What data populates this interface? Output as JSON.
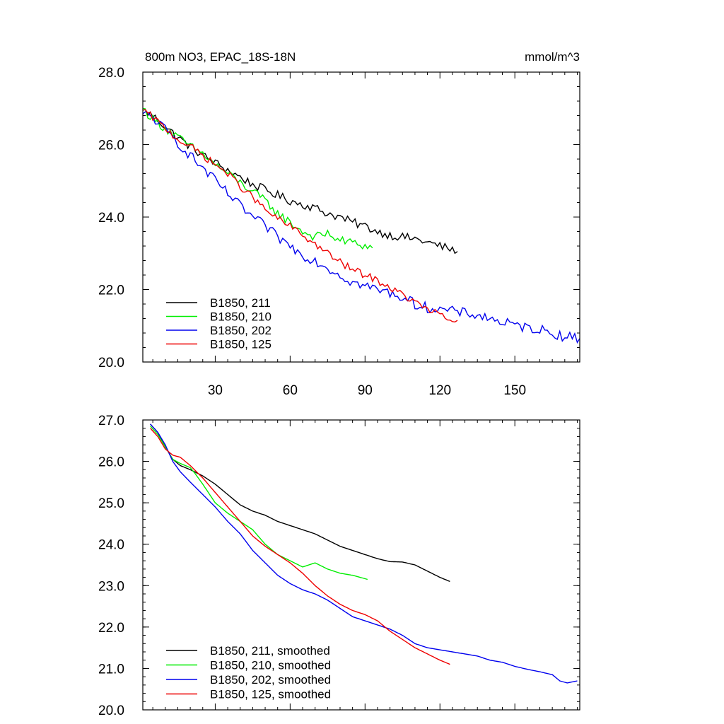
{
  "chart_data": [
    {
      "type": "line",
      "title": "800m NO3, EPAC_18S-18N",
      "units": "mmol/m^3",
      "xlim": [
        1,
        176
      ],
      "ylim": [
        20.0,
        28.0
      ],
      "x_ticks": [
        30,
        60,
        90,
        120,
        150
      ],
      "y_ticks": [
        20.0,
        22.0,
        24.0,
        26.0,
        28.0
      ],
      "x_tick_labels": [
        "30",
        "60",
        "90",
        "120",
        "150"
      ],
      "y_tick_labels": [
        "20.0",
        "22.0",
        "24.0",
        "26.0",
        "28.0"
      ],
      "legend_placement": "bottom-left",
      "series": [
        {
          "name": "B1850, 211",
          "color": "#000000",
          "anchors": [
            [
              1,
              26.95
            ],
            [
              5,
              26.8
            ],
            [
              10,
              26.5
            ],
            [
              15,
              26.2
            ],
            [
              20,
              25.95
            ],
            [
              25,
              25.7
            ],
            [
              30,
              25.5
            ],
            [
              35,
              25.3
            ],
            [
              40,
              25.1
            ],
            [
              45,
              24.9
            ],
            [
              50,
              24.75
            ],
            [
              55,
              24.6
            ],
            [
              60,
              24.45
            ],
            [
              65,
              24.35
            ],
            [
              70,
              24.25
            ],
            [
              75,
              24.1
            ],
            [
              80,
              24.0
            ],
            [
              85,
              23.85
            ],
            [
              90,
              23.75
            ],
            [
              95,
              23.6
            ],
            [
              100,
              23.5
            ],
            [
              105,
              23.45
            ],
            [
              110,
              23.4
            ],
            [
              115,
              23.3
            ],
            [
              120,
              23.2
            ],
            [
              125,
              23.1
            ],
            [
              127,
              23.05
            ]
          ],
          "noise": 0.12
        },
        {
          "name": "B1850, 210",
          "color": "#00ee00",
          "anchors": [
            [
              1,
              27.0
            ],
            [
              5,
              26.7
            ],
            [
              10,
              26.45
            ],
            [
              15,
              26.2
            ],
            [
              20,
              25.95
            ],
            [
              25,
              25.75
            ],
            [
              30,
              25.45
            ],
            [
              35,
              25.2
            ],
            [
              40,
              24.95
            ],
            [
              45,
              24.7
            ],
            [
              50,
              24.45
            ],
            [
              55,
              24.1
            ],
            [
              60,
              23.85
            ],
            [
              65,
              23.6
            ],
            [
              70,
              23.45
            ],
            [
              75,
              23.55
            ],
            [
              80,
              23.35
            ],
            [
              85,
              23.3
            ],
            [
              90,
              23.2
            ],
            [
              93,
              23.15
            ]
          ],
          "noise": 0.12
        },
        {
          "name": "B1850, 202",
          "color": "#0000ee",
          "anchors": [
            [
              1,
              26.85
            ],
            [
              5,
              26.75
            ],
            [
              10,
              26.4
            ],
            [
              15,
              26.05
            ],
            [
              20,
              25.7
            ],
            [
              25,
              25.35
            ],
            [
              30,
              25.0
            ],
            [
              35,
              24.65
            ],
            [
              40,
              24.3
            ],
            [
              45,
              24.0
            ],
            [
              50,
              23.75
            ],
            [
              55,
              23.45
            ],
            [
              60,
              23.2
            ],
            [
              65,
              22.95
            ],
            [
              70,
              22.8
            ],
            [
              75,
              22.6
            ],
            [
              80,
              22.4
            ],
            [
              85,
              22.2
            ],
            [
              90,
              22.1
            ],
            [
              95,
              22.0
            ],
            [
              100,
              21.9
            ],
            [
              105,
              21.8
            ],
            [
              110,
              21.6
            ],
            [
              115,
              21.5
            ],
            [
              120,
              21.45
            ],
            [
              125,
              21.4
            ],
            [
              130,
              21.35
            ],
            [
              135,
              21.3
            ],
            [
              140,
              21.2
            ],
            [
              145,
              21.1
            ],
            [
              150,
              21.0
            ],
            [
              155,
              20.95
            ],
            [
              160,
              20.9
            ],
            [
              165,
              20.8
            ],
            [
              170,
              20.7
            ],
            [
              176,
              20.65
            ]
          ],
          "noise": 0.14
        },
        {
          "name": "B1850, 125",
          "color": "#ee0000",
          "anchors": [
            [
              1,
              26.95
            ],
            [
              5,
              26.75
            ],
            [
              10,
              26.45
            ],
            [
              15,
              26.15
            ],
            [
              20,
              25.95
            ],
            [
              25,
              25.7
            ],
            [
              30,
              25.45
            ],
            [
              35,
              25.2
            ],
            [
              40,
              24.85
            ],
            [
              45,
              24.55
            ],
            [
              50,
              24.2
            ],
            [
              55,
              23.95
            ],
            [
              60,
              23.75
            ],
            [
              65,
              23.5
            ],
            [
              70,
              23.25
            ],
            [
              75,
              23.0
            ],
            [
              80,
              22.75
            ],
            [
              85,
              22.55
            ],
            [
              90,
              22.4
            ],
            [
              95,
              22.25
            ],
            [
              100,
              22.05
            ],
            [
              105,
              21.85
            ],
            [
              110,
              21.65
            ],
            [
              115,
              21.45
            ],
            [
              120,
              21.3
            ],
            [
              125,
              21.1
            ],
            [
              127,
              21.15
            ]
          ],
          "noise": 0.1
        }
      ]
    },
    {
      "type": "line",
      "title": "",
      "xlim": [
        1,
        176
      ],
      "ylim": [
        20.0,
        27.0
      ],
      "x_ticks": [
        30,
        60,
        90,
        120,
        150
      ],
      "y_ticks": [
        20.0,
        21.0,
        22.0,
        23.0,
        24.0,
        25.0,
        26.0,
        27.0
      ],
      "y_tick_labels": [
        "20.0",
        "21.0",
        "22.0",
        "23.0",
        "24.0",
        "25.0",
        "26.0",
        "27.0"
      ],
      "legend_placement": "bottom-left",
      "series": [
        {
          "name": "B1850, 211, smoothed",
          "color": "#000000",
          "anchors": [
            [
              4,
              26.9
            ],
            [
              7,
              26.7
            ],
            [
              10,
              26.35
            ],
            [
              13,
              26.05
            ],
            [
              16,
              25.9
            ],
            [
              20,
              25.8
            ],
            [
              25,
              25.65
            ],
            [
              30,
              25.45
            ],
            [
              35,
              25.2
            ],
            [
              40,
              24.95
            ],
            [
              45,
              24.8
            ],
            [
              50,
              24.7
            ],
            [
              55,
              24.55
            ],
            [
              60,
              24.45
            ],
            [
              65,
              24.35
            ],
            [
              70,
              24.25
            ],
            [
              75,
              24.1
            ],
            [
              80,
              23.95
            ],
            [
              85,
              23.85
            ],
            [
              90,
              23.75
            ],
            [
              95,
              23.65
            ],
            [
              100,
              23.58
            ],
            [
              105,
              23.57
            ],
            [
              110,
              23.5
            ],
            [
              115,
              23.35
            ],
            [
              120,
              23.2
            ],
            [
              124,
              23.1
            ]
          ]
        },
        {
          "name": "B1850, 210, smoothed",
          "color": "#00ee00",
          "anchors": [
            [
              4,
              26.85
            ],
            [
              7,
              26.65
            ],
            [
              10,
              26.35
            ],
            [
              13,
              26.05
            ],
            [
              16,
              25.95
            ],
            [
              20,
              25.85
            ],
            [
              22,
              25.7
            ],
            [
              25,
              25.45
            ],
            [
              30,
              25.0
            ],
            [
              35,
              24.75
            ],
            [
              40,
              24.55
            ],
            [
              45,
              24.35
            ],
            [
              50,
              24.0
            ],
            [
              55,
              23.75
            ],
            [
              60,
              23.6
            ],
            [
              65,
              23.45
            ],
            [
              70,
              23.55
            ],
            [
              75,
              23.4
            ],
            [
              80,
              23.3
            ],
            [
              85,
              23.25
            ],
            [
              88,
              23.2
            ],
            [
              91,
              23.15
            ]
          ]
        },
        {
          "name": "B1850, 202, smoothed",
          "color": "#0000ee",
          "anchors": [
            [
              4,
              26.9
            ],
            [
              7,
              26.7
            ],
            [
              10,
              26.4
            ],
            [
              13,
              26.0
            ],
            [
              16,
              25.75
            ],
            [
              20,
              25.5
            ],
            [
              25,
              25.2
            ],
            [
              30,
              24.9
            ],
            [
              35,
              24.55
            ],
            [
              40,
              24.25
            ],
            [
              45,
              23.85
            ],
            [
              50,
              23.55
            ],
            [
              55,
              23.25
            ],
            [
              60,
              23.05
            ],
            [
              65,
              22.9
            ],
            [
              70,
              22.8
            ],
            [
              75,
              22.65
            ],
            [
              80,
              22.45
            ],
            [
              85,
              22.25
            ],
            [
              90,
              22.15
            ],
            [
              95,
              22.05
            ],
            [
              100,
              21.95
            ],
            [
              105,
              21.8
            ],
            [
              110,
              21.6
            ],
            [
              115,
              21.5
            ],
            [
              120,
              21.45
            ],
            [
              125,
              21.4
            ],
            [
              130,
              21.35
            ],
            [
              135,
              21.3
            ],
            [
              140,
              21.2
            ],
            [
              145,
              21.15
            ],
            [
              150,
              21.05
            ],
            [
              155,
              20.98
            ],
            [
              160,
              20.92
            ],
            [
              165,
              20.85
            ],
            [
              168,
              20.7
            ],
            [
              171,
              20.65
            ],
            [
              175,
              20.7
            ]
          ]
        },
        {
          "name": "B1850, 125, smoothed",
          "color": "#ee0000",
          "anchors": [
            [
              4,
              26.8
            ],
            [
              7,
              26.6
            ],
            [
              10,
              26.3
            ],
            [
              13,
              26.15
            ],
            [
              16,
              26.1
            ],
            [
              20,
              25.9
            ],
            [
              25,
              25.6
            ],
            [
              30,
              25.25
            ],
            [
              35,
              24.9
            ],
            [
              40,
              24.55
            ],
            [
              45,
              24.2
            ],
            [
              50,
              23.95
            ],
            [
              55,
              23.75
            ],
            [
              60,
              23.55
            ],
            [
              65,
              23.3
            ],
            [
              70,
              23.0
            ],
            [
              75,
              22.75
            ],
            [
              80,
              22.55
            ],
            [
              85,
              22.4
            ],
            [
              90,
              22.3
            ],
            [
              95,
              22.15
            ],
            [
              100,
              21.9
            ],
            [
              105,
              21.7
            ],
            [
              110,
              21.5
            ],
            [
              115,
              21.35
            ],
            [
              120,
              21.2
            ],
            [
              124,
              21.1
            ]
          ]
        }
      ]
    }
  ]
}
